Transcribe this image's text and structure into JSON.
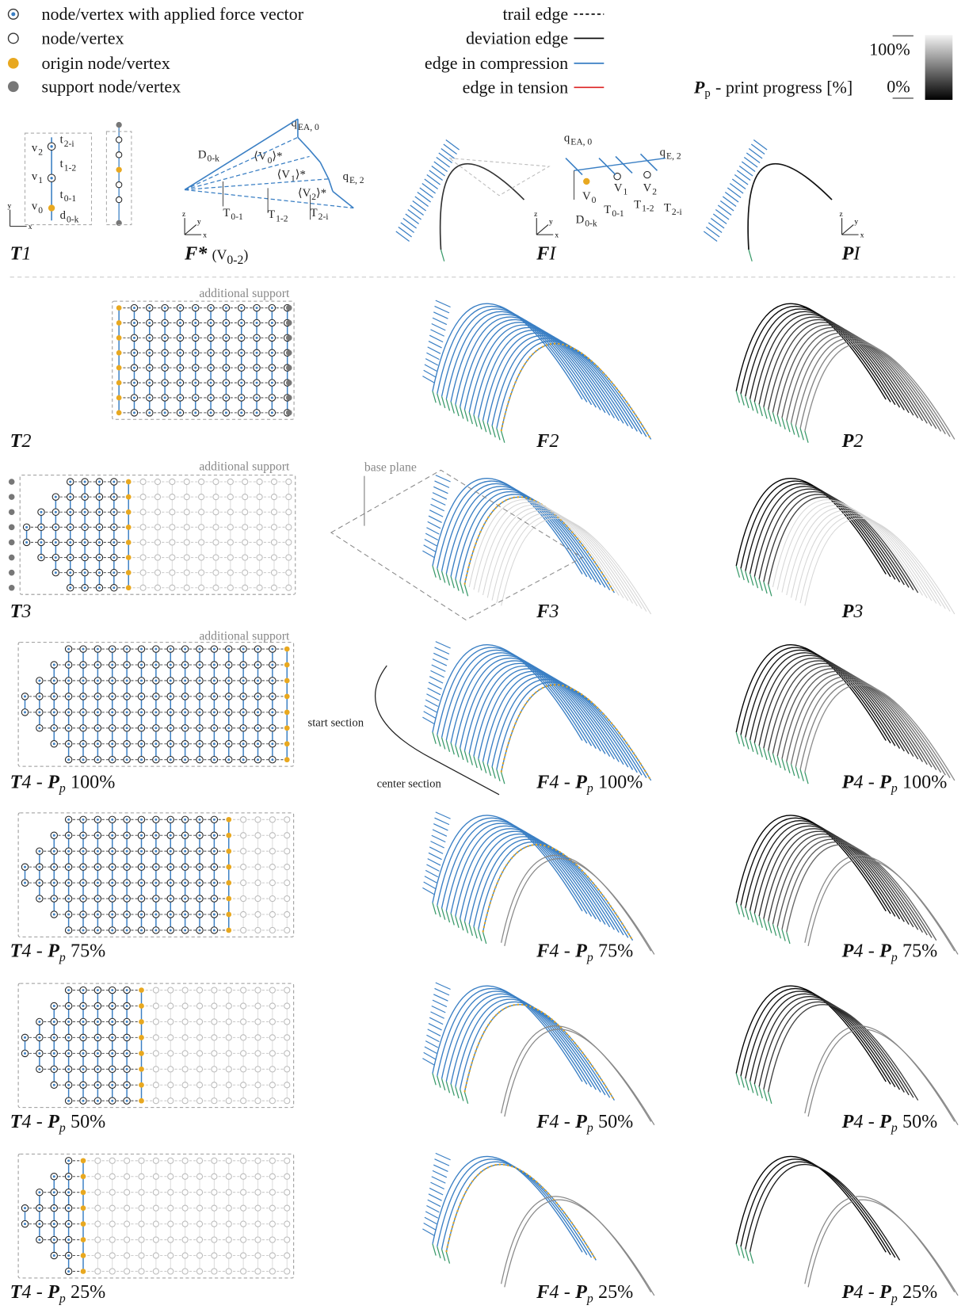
{
  "legend": {
    "nodes": [
      "node/vertex with applied force vector",
      "node/vertex",
      "origin node/vertex",
      "support node/vertex"
    ],
    "edges": [
      "trail edge",
      "deviation edge",
      "edge in compression",
      "edge in tension"
    ],
    "colorbar": {
      "symbol": "P",
      "subscript": "p",
      "text": "- print progress [%]",
      "max": "100%",
      "min": "0%"
    }
  },
  "annotations": {
    "additional_support": [
      "additional support",
      "additional support",
      "additional support"
    ],
    "base_plane": "base plane",
    "start_section": "start section",
    "center_section": "center section",
    "axis_labels": [
      "x",
      "y",
      "z"
    ]
  },
  "t1": [
    {
      "t": "v",
      "s": "2"
    },
    {
      "t": "v",
      "s": "1"
    },
    {
      "t": "v",
      "s": "0"
    },
    {
      "t": "t",
      "s": "2-i"
    },
    {
      "t": "t",
      "s": "1-2"
    },
    {
      "t": "t",
      "s": "0-1"
    },
    {
      "t": "d",
      "s": "0-k"
    }
  ],
  "f_star": [
    {
      "t": "D",
      "s": "0-k"
    },
    {
      "t": "⟨V",
      "s": "0",
      "a": "⟩*"
    },
    {
      "t": "⟨V",
      "s": "1",
      "a": "⟩*"
    },
    {
      "t": "⟨V",
      "s": "2",
      "a": "⟩*"
    },
    {
      "t": "q",
      "s": "EA, 0"
    },
    {
      "t": "q",
      "s": "E, 2"
    },
    {
      "t": "T",
      "s": "0-1"
    },
    {
      "t": "T",
      "s": "1-2"
    },
    {
      "t": "T",
      "s": "2-i"
    }
  ],
  "fi": [
    {
      "t": "q",
      "s": "EA, 0"
    },
    {
      "t": "q",
      "s": "E, 2"
    },
    {
      "t": "V",
      "s": "0"
    },
    {
      "t": "V",
      "s": "1"
    },
    {
      "t": "V",
      "s": "2"
    },
    {
      "t": "D",
      "s": "0-k"
    },
    {
      "t": "T",
      "s": "0-1"
    },
    {
      "t": "T",
      "s": "1-2"
    },
    {
      "t": "T",
      "s": "2-i"
    }
  ],
  "top_labels": [
    [
      {
        "text": "T",
        "style": "bi"
      },
      {
        "text": "1",
        "style": "i"
      }
    ],
    [
      {
        "text": "F*",
        "style": "bi"
      },
      {
        "text": "(V",
        "style": "n"
      },
      {
        "text": "0-2",
        "style": "sub"
      },
      {
        "text": ")",
        "style": "c"
      }
    ],
    [
      {
        "text": "F",
        "style": "bi"
      },
      {
        "text": "I",
        "style": "i"
      }
    ],
    [
      {
        "text": "P",
        "style": "bi"
      },
      {
        "text": "I",
        "style": "i"
      }
    ]
  ],
  "rows": [
    {
      "T": [
        {
          "text": "T",
          "style": "bi"
        },
        {
          "text": "2",
          "style": "i"
        }
      ],
      "F": [
        {
          "text": "F",
          "style": "bi"
        },
        {
          "text": "2",
          "style": "i"
        }
      ],
      "P": [
        {
          "text": "P",
          "style": "bi"
        },
        {
          "text": "2",
          "style": "i"
        }
      ]
    },
    {
      "T": [
        {
          "text": "T",
          "style": "bi"
        },
        {
          "text": "3",
          "style": "i"
        }
      ],
      "F": [
        {
          "text": "F",
          "style": "bi"
        },
        {
          "text": "3",
          "style": "i"
        }
      ],
      "P": [
        {
          "text": "P",
          "style": "bi"
        },
        {
          "text": "3",
          "style": "i"
        }
      ]
    },
    {
      "T": [
        {
          "text": "T",
          "style": "bi"
        },
        {
          "text": "4",
          "style": "i"
        },
        {
          "text": "-",
          "style": "n"
        },
        {
          "text": "P",
          "style": "bi"
        },
        {
          "text": "p",
          "style": "subi"
        },
        {
          "text": "100%",
          "style": "n"
        }
      ],
      "F": [
        {
          "text": "F",
          "style": "bi"
        },
        {
          "text": "4",
          "style": "i"
        },
        {
          "text": "-",
          "style": "n"
        },
        {
          "text": "P",
          "style": "bi"
        },
        {
          "text": "p",
          "style": "subi"
        },
        {
          "text": "100%",
          "style": "n"
        }
      ],
      "P": [
        {
          "text": "P",
          "style": "bi"
        },
        {
          "text": "4",
          "style": "i"
        },
        {
          "text": "-",
          "style": "n"
        },
        {
          "text": "P",
          "style": "bi"
        },
        {
          "text": "p",
          "style": "subi"
        },
        {
          "text": "100%",
          "style": "n"
        }
      ]
    },
    {
      "T": [
        {
          "text": "T",
          "style": "bi"
        },
        {
          "text": "4",
          "style": "i"
        },
        {
          "text": "-",
          "style": "n"
        },
        {
          "text": "P",
          "style": "bi"
        },
        {
          "text": "p",
          "style": "subi"
        },
        {
          "text": "75%",
          "style": "n"
        }
      ],
      "F": [
        {
          "text": "F",
          "style": "bi"
        },
        {
          "text": "4",
          "style": "i"
        },
        {
          "text": "-",
          "style": "n"
        },
        {
          "text": "P",
          "style": "bi"
        },
        {
          "text": "p",
          "style": "subi"
        },
        {
          "text": "75%",
          "style": "n"
        }
      ],
      "P": [
        {
          "text": "P",
          "style": "bi"
        },
        {
          "text": "4",
          "style": "i"
        },
        {
          "text": "-",
          "style": "n"
        },
        {
          "text": "P",
          "style": "bi"
        },
        {
          "text": "p",
          "style": "subi"
        },
        {
          "text": "75%",
          "style": "n"
        }
      ]
    },
    {
      "T": [
        {
          "text": "T",
          "style": "bi"
        },
        {
          "text": "4",
          "style": "i"
        },
        {
          "text": "-",
          "style": "n"
        },
        {
          "text": "P",
          "style": "bi"
        },
        {
          "text": "p",
          "style": "subi"
        },
        {
          "text": "50%",
          "style": "n"
        }
      ],
      "F": [
        {
          "text": "F",
          "style": "bi"
        },
        {
          "text": "4",
          "style": "i"
        },
        {
          "text": "-",
          "style": "n"
        },
        {
          "text": "P",
          "style": "bi"
        },
        {
          "text": "p",
          "style": "subi"
        },
        {
          "text": "50%",
          "style": "n"
        }
      ],
      "P": [
        {
          "text": "P",
          "style": "bi"
        },
        {
          "text": "4",
          "style": "i"
        },
        {
          "text": "-",
          "style": "n"
        },
        {
          "text": "P",
          "style": "bi"
        },
        {
          "text": "p",
          "style": "subi"
        },
        {
          "text": "50%",
          "style": "n"
        }
      ]
    },
    {
      "T": [
        {
          "text": "T",
          "style": "bi"
        },
        {
          "text": "4",
          "style": "i"
        },
        {
          "text": "-",
          "style": "n"
        },
        {
          "text": "P",
          "style": "bi"
        },
        {
          "text": "p",
          "style": "subi"
        },
        {
          "text": "25%",
          "style": "n"
        }
      ],
      "F": [
        {
          "text": "F",
          "style": "bi"
        },
        {
          "text": "4",
          "style": "i"
        },
        {
          "text": "-",
          "style": "n"
        },
        {
          "text": "P",
          "style": "bi"
        },
        {
          "text": "p",
          "style": "subi"
        },
        {
          "text": "25%",
          "style": "n"
        }
      ],
      "P": [
        {
          "text": "P",
          "style": "bi"
        },
        {
          "text": "4",
          "style": "i"
        },
        {
          "text": "-",
          "style": "n"
        },
        {
          "text": "P",
          "style": "bi"
        },
        {
          "text": "p",
          "style": "subi"
        },
        {
          "text": "25%",
          "style": "n"
        }
      ]
    }
  ]
}
